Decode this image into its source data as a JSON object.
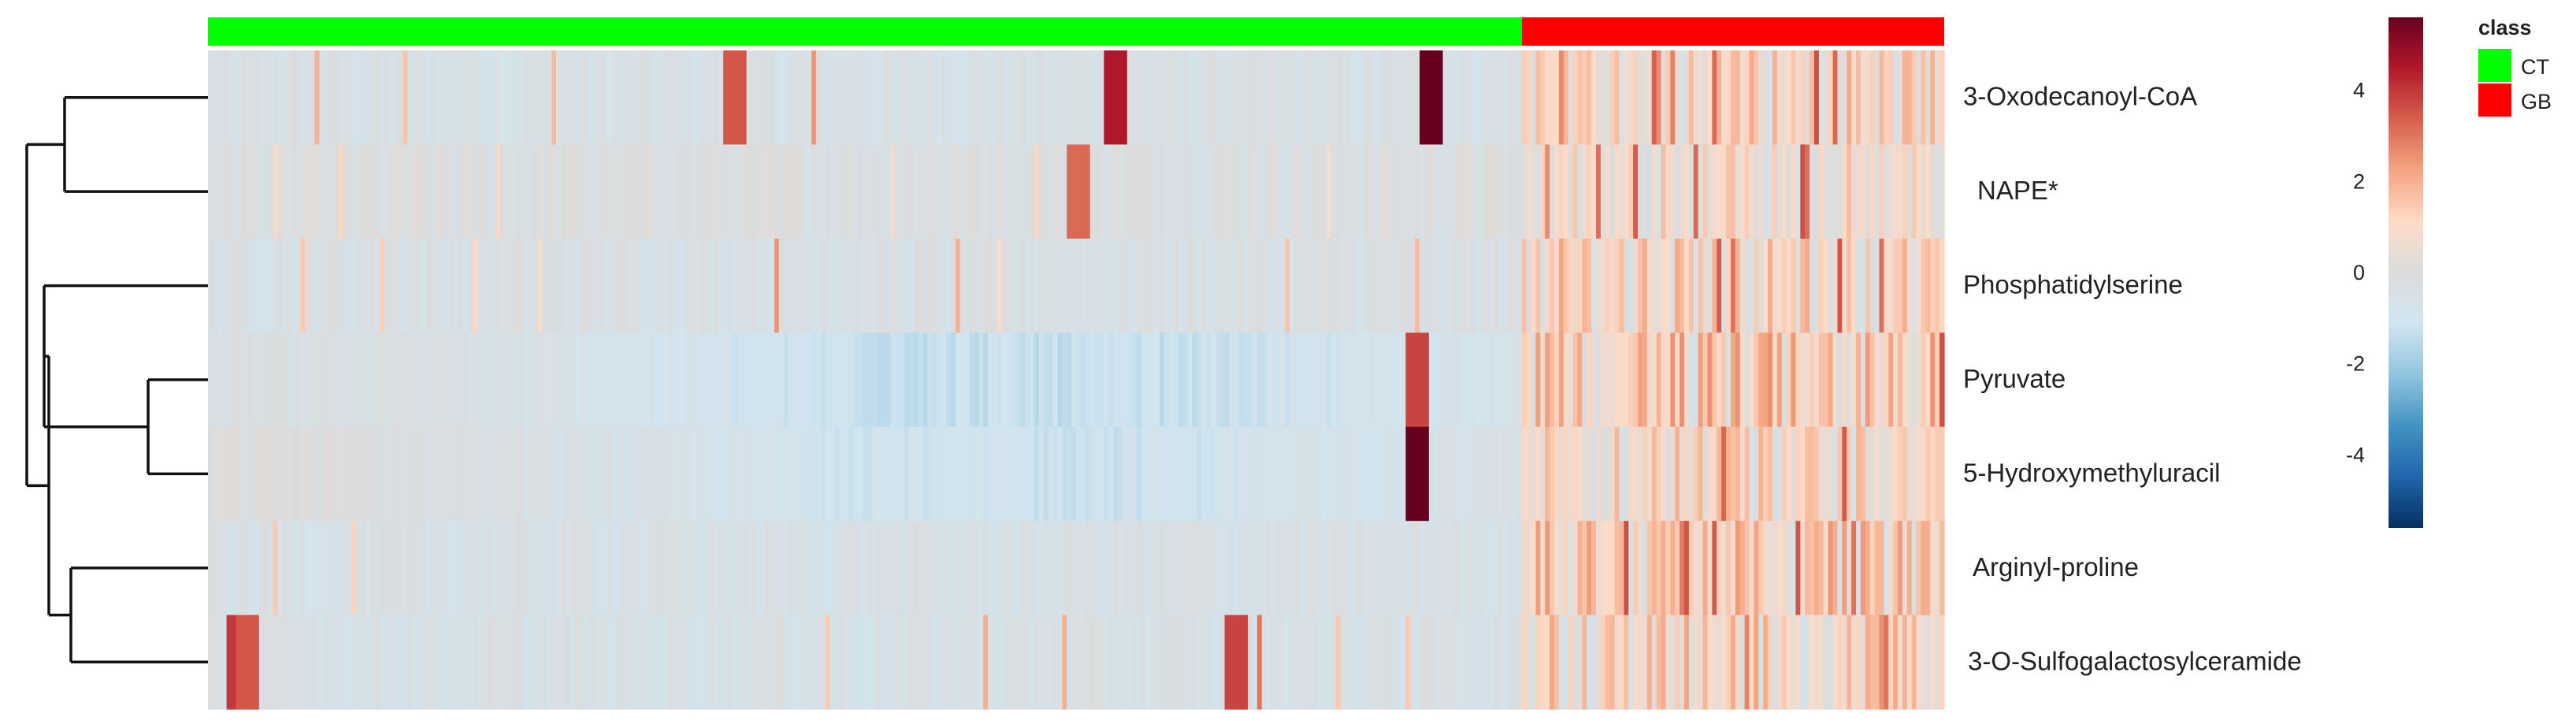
{
  "chart_data": {
    "type": "heatmap",
    "title": "",
    "rows": [
      {
        "label": "3-Oxodecanoyl-CoA",
        "ct_mean": -0.5,
        "gb_mean": 1.0,
        "ct_hits": [
          [
            0.08,
            2.0
          ],
          [
            0.15,
            1.6
          ],
          [
            0.26,
            1.8
          ],
          [
            0.4,
            3.5
          ],
          [
            0.46,
            2.5
          ],
          [
            0.69,
            4.5
          ],
          [
            0.93,
            5.6
          ]
        ]
      },
      {
        "label": "NAPE*",
        "ct_mean": -0.2,
        "gb_mean": 0.6,
        "ct_hits": [
          [
            0.05,
            0.8
          ],
          [
            0.1,
            1.2
          ],
          [
            0.22,
            0.9
          ],
          [
            0.52,
            0.7
          ],
          [
            0.63,
            1.2
          ],
          [
            0.66,
            3.2
          ],
          [
            0.85,
            0.9
          ]
        ]
      },
      {
        "label": "Phosphatidylserine",
        "ct_mean": -0.4,
        "gb_mean": 1.0,
        "ct_hits": [
          [
            0.07,
            1.5
          ],
          [
            0.13,
            1.4
          ],
          [
            0.2,
            1.2
          ],
          [
            0.25,
            1.0
          ],
          [
            0.43,
            2.5
          ],
          [
            0.57,
            2.0
          ],
          [
            0.6,
            1.0
          ],
          [
            0.82,
            1.6
          ],
          [
            0.92,
            1.8
          ]
        ]
      },
      {
        "label": "Pyruvate",
        "ct_mean": -0.8,
        "gb_mean": 1.4,
        "ct_hits": [
          [
            0.92,
            3.8
          ]
        ]
      },
      {
        "label": "5-Hydroxymethyluracil",
        "ct_mean": -0.6,
        "gb_mean": 0.9,
        "ct_hits": [
          [
            0.92,
            5.6
          ]
        ]
      },
      {
        "label": "Arginyl-proline",
        "ct_mean": -0.5,
        "gb_mean": 1.3,
        "ct_hits": [
          [
            0.05,
            1.5
          ],
          [
            0.11,
            1.3
          ]
        ]
      },
      {
        "label": "3-O-Sulfogalactosylceramide",
        "ct_mean": -0.5,
        "gb_mean": 1.1,
        "ct_hits": [
          [
            0.02,
            4.0
          ],
          [
            0.03,
            3.5
          ],
          [
            0.47,
            1.5
          ],
          [
            0.59,
            2.0
          ],
          [
            0.65,
            2.0
          ],
          [
            0.78,
            3.8
          ],
          [
            0.8,
            3.0
          ],
          [
            0.86,
            1.5
          ],
          [
            0.91,
            1.5
          ]
        ]
      }
    ],
    "columns": {
      "CT": 283,
      "GB": 91
    },
    "col_annotation": {
      "title": "class",
      "levels": [
        {
          "name": "CT",
          "color": "#00ff00"
        },
        {
          "name": "GB",
          "color": "#ff0000"
        }
      ]
    },
    "color_scale": {
      "range": [
        -5.6,
        5.6
      ],
      "ticks": [
        "4",
        "2",
        "0",
        "-2",
        "-4"
      ],
      "tick_values": [
        4,
        2,
        0,
        -2,
        -4
      ],
      "colors": [
        "#053061",
        "#2166ac",
        "#4393c3",
        "#92c5de",
        "#d1e5f0",
        "#dcdcdc",
        "#fddbc7",
        "#f4a582",
        "#d6604d",
        "#b2182b",
        "#67001f"
      ]
    },
    "row_dendrogram": true
  }
}
